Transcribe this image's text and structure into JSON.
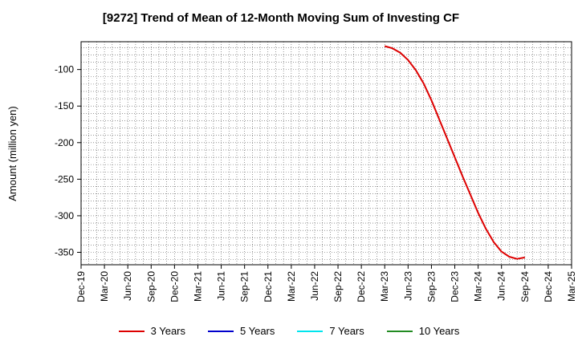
{
  "chart_data": {
    "type": "line",
    "title": "[9272]  Trend of Mean of 12-Month Moving Sum of Investing CF",
    "ylabel": "Amount (million yen)",
    "xlabel": "",
    "x_ticks": [
      "Dec-19",
      "Mar-20",
      "Jun-20",
      "Sep-20",
      "Dec-20",
      "Mar-21",
      "Jun-21",
      "Sep-21",
      "Dec-21",
      "Mar-22",
      "Jun-22",
      "Sep-22",
      "Dec-22",
      "Mar-23",
      "Jun-23",
      "Sep-23",
      "Dec-23",
      "Mar-24",
      "Jun-24",
      "Sep-24",
      "Dec-24",
      "Mar-25"
    ],
    "y_ticks": [
      -100,
      -150,
      -200,
      -250,
      -300,
      -350
    ],
    "ylim": [
      -367,
      -62
    ],
    "grid": true,
    "legend_position": "bottom",
    "series": [
      {
        "name": "3 Years",
        "color": "#dd0000",
        "points": [
          [
            "Mar-23",
            -68
          ],
          [
            "Apr-23",
            -71
          ],
          [
            "May-23",
            -77
          ],
          [
            "Jun-23",
            -87
          ],
          [
            "Jul-23",
            -101
          ],
          [
            "Aug-23",
            -119
          ],
          [
            "Sep-23",
            -142
          ],
          [
            "Oct-23",
            -168
          ],
          [
            "Nov-23",
            -194
          ],
          [
            "Dec-23",
            -220
          ],
          [
            "Jan-24",
            -246
          ],
          [
            "Feb-24",
            -271
          ],
          [
            "Mar-24",
            -296
          ],
          [
            "Apr-24",
            -318
          ],
          [
            "May-24",
            -336
          ],
          [
            "Jun-24",
            -349
          ],
          [
            "Jul-24",
            -356
          ],
          [
            "Aug-24",
            -359
          ],
          [
            "Sep-24",
            -357
          ]
        ]
      },
      {
        "name": "5 Years",
        "color": "#0000cc",
        "points": []
      },
      {
        "name": "7 Years",
        "color": "#00e5ee",
        "points": []
      },
      {
        "name": "10 Years",
        "color": "#228b22",
        "points": []
      }
    ]
  }
}
